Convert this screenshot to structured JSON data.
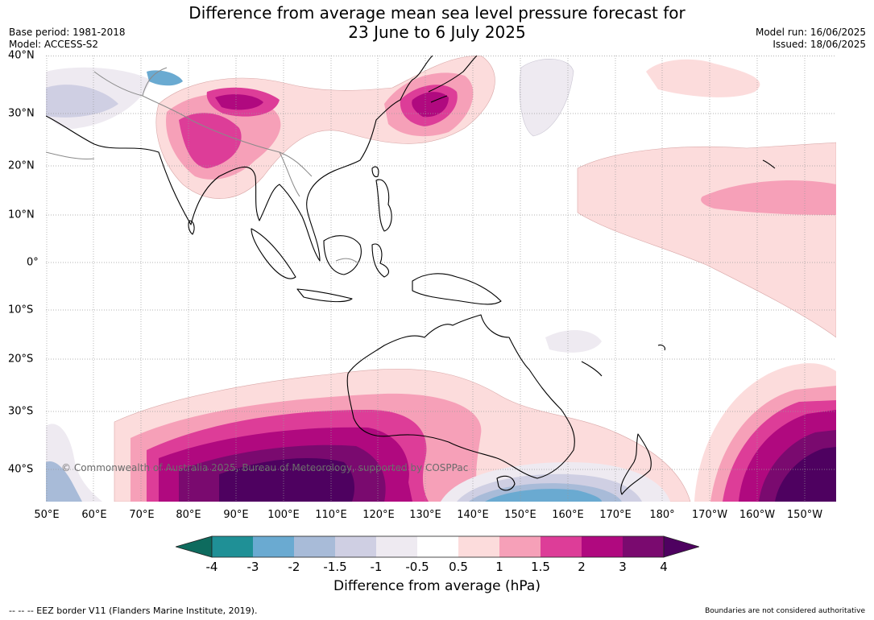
{
  "header": {
    "title_line1": "Difference from average mean sea level pressure forecast for",
    "title_line2": "23 June to 6 July 2025",
    "base_period": "Base period: 1981-2018",
    "model": "Model: ACCESS-S2",
    "model_run": "Model run: 16/06/2025",
    "issued": "Issued: 18/06/2025"
  },
  "map": {
    "lat_labels": [
      "40°N",
      "30°N",
      "20°N",
      "10°N",
      "0°",
      "10°S",
      "20°S",
      "30°S",
      "40°S"
    ],
    "lon_labels": [
      "50°E",
      "60°E",
      "70°E",
      "80°E",
      "90°E",
      "100°E",
      "110°E",
      "120°E",
      "130°E",
      "140°E",
      "150°E",
      "160°E",
      "170°E",
      "180°",
      "170°W",
      "160°W",
      "150°W"
    ],
    "credit": "© Commonwealth of Australia 2025, Bureau of Meteorology, supported by COSPPac"
  },
  "legend": {
    "title": "Difference from average (hPa)",
    "tick_labels": [
      "-4",
      "-3",
      "-2",
      "-1.5",
      "-1",
      "-0.5",
      "0.5",
      "1",
      "1.5",
      "2",
      "3",
      "4"
    ],
    "colors": [
      "#0e6b5e",
      "#1f9096",
      "#6aaad1",
      "#a8bbd8",
      "#cfcfe3",
      "#eeeaf1",
      "#ffffff",
      "#fcdcdc",
      "#f6a0b8",
      "#dd3d98",
      "#b0097f",
      "#7a0a6f",
      "#4e0160"
    ]
  },
  "footer": {
    "eez_note": "--  --  -- EEZ border V11 (Flanders Marine Institute, 2019).",
    "disclaimer": "Boundaries are not considered authoritative"
  }
}
